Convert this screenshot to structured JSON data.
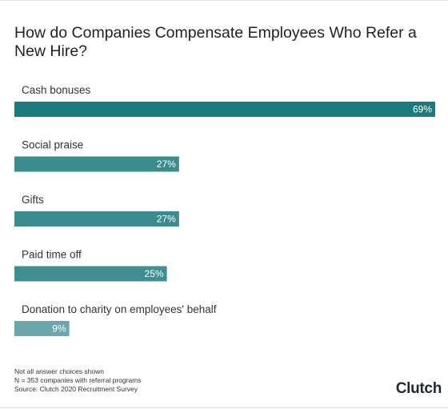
{
  "chart_data": {
    "type": "bar",
    "orientation": "horizontal",
    "title": "How do Companies Compensate Employees Who Refer a New Hire?",
    "categories": [
      "Cash bonuses",
      "Social praise",
      "Gifts",
      "Paid time off",
      "Donation to charity on employees' behalf"
    ],
    "values": [
      69,
      27,
      27,
      25,
      9
    ],
    "value_labels": [
      "69%",
      "27%",
      "27%",
      "25%",
      "9%"
    ],
    "unit": "%",
    "xlim": [
      0,
      69
    ],
    "grid": false,
    "colors": [
      "#1b7a7b",
      "#3a8c8e",
      "#3a8c8e",
      "#3f8f92",
      "#6aa6ab"
    ]
  },
  "footnotes": [
    "Not all answer choices shown",
    "N = 353 companies with referral programs",
    "Source: Clutch 2020 Recruitment Survey"
  ],
  "brand": {
    "logo_text": "Clutch"
  }
}
